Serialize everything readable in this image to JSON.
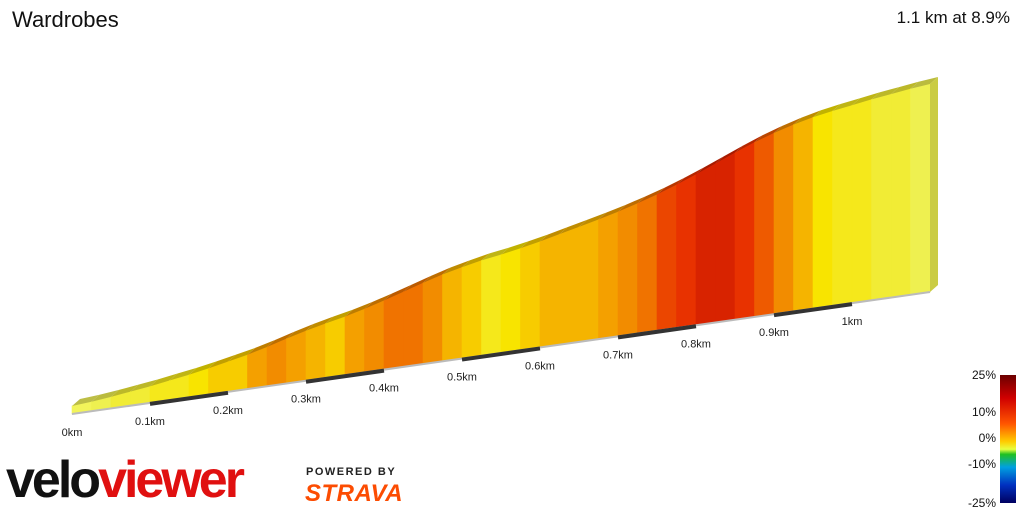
{
  "header": {
    "title": "Wardrobes",
    "summary": "1.1 km at 8.9%"
  },
  "branding": {
    "logo_text": "veloviewer",
    "powered_by": "POWERED BY",
    "strava": "STRAVA"
  },
  "legend": {
    "labels": [
      "25%",
      "10%",
      "0%",
      "-10%",
      "-25%"
    ]
  },
  "colors": {
    "accent_strava": "#fc4c02",
    "logo_black": "#111111",
    "logo_red": "#e01010"
  },
  "chart_data": {
    "type": "area",
    "title": "Wardrobes",
    "distance_ticks": [
      "0km",
      "0.1km",
      "0.2km",
      "0.3km",
      "0.4km",
      "0.5km",
      "0.6km",
      "0.7km",
      "0.8km",
      "0.9km",
      "1km"
    ],
    "distance_km": [
      0,
      0.025,
      0.05,
      0.075,
      0.1,
      0.125,
      0.15,
      0.175,
      0.2,
      0.225,
      0.25,
      0.275,
      0.3,
      0.325,
      0.35,
      0.375,
      0.4,
      0.425,
      0.45,
      0.475,
      0.5,
      0.525,
      0.55,
      0.575,
      0.6,
      0.625,
      0.65,
      0.675,
      0.7,
      0.725,
      0.75,
      0.775,
      0.8,
      0.825,
      0.85,
      0.875,
      0.9,
      0.925,
      0.95,
      0.975,
      1.0,
      1.025,
      1.05,
      1.075,
      1.1
    ],
    "gradient_pct": [
      2,
      3,
      4,
      5,
      5,
      6,
      6,
      7,
      8,
      8,
      10,
      11,
      10,
      9,
      8,
      10,
      11,
      12,
      12,
      11,
      9,
      8,
      6,
      7,
      8,
      9,
      9,
      9,
      10,
      11,
      12,
      14,
      15,
      16,
      16,
      15,
      13,
      11,
      9,
      7,
      6,
      6,
      5,
      5,
      4
    ],
    "total_distance_km": 1.1,
    "avg_gradient_pct": 8.9,
    "gradient_scale": [
      -25,
      25
    ]
  }
}
